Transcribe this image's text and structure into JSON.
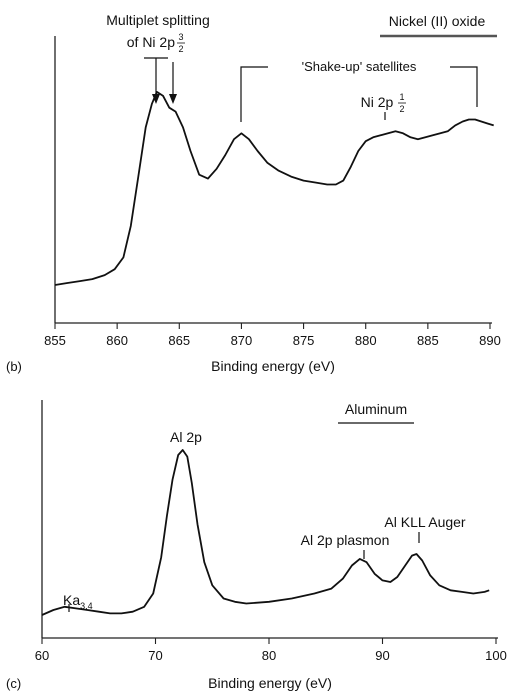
{
  "chart_data": [
    {
      "type": "line",
      "panel_label": "(b)",
      "title": "Nickel (II) oxide",
      "xlabel": "Binding energy (eV)",
      "ylabel": "",
      "xlim": [
        855,
        890
      ],
      "xticks": [
        855,
        860,
        865,
        870,
        875,
        880,
        885,
        890
      ],
      "series": [
        {
          "x": [
            855,
            856,
            857,
            858,
            859,
            859.8,
            860.5,
            861.1,
            861.7,
            862.3,
            862.8,
            863.2,
            863.7,
            864.2,
            864.7,
            865.3,
            865.9,
            866.6,
            867.3,
            868.0,
            868.7,
            869.4,
            870.0,
            870.6,
            871.3,
            872.1,
            873.0,
            874.0,
            875.0,
            876.0,
            876.9,
            877.6,
            878.2,
            878.8,
            879.4,
            880.0,
            880.6,
            881.2,
            881.8,
            882.4,
            883.0,
            883.6,
            884.2,
            884.8,
            885.4,
            886.0,
            886.6,
            887.2,
            887.8,
            888.3,
            888.8,
            889.3,
            889.8,
            890.3
          ],
          "y": [
            0.0,
            0.01,
            0.02,
            0.03,
            0.05,
            0.08,
            0.14,
            0.3,
            0.55,
            0.8,
            0.92,
            0.98,
            0.96,
            0.9,
            0.88,
            0.8,
            0.68,
            0.56,
            0.54,
            0.59,
            0.66,
            0.74,
            0.77,
            0.74,
            0.68,
            0.62,
            0.58,
            0.55,
            0.53,
            0.52,
            0.51,
            0.51,
            0.53,
            0.6,
            0.68,
            0.73,
            0.75,
            0.76,
            0.77,
            0.78,
            0.77,
            0.75,
            0.74,
            0.75,
            0.76,
            0.77,
            0.78,
            0.81,
            0.83,
            0.84,
            0.84,
            0.83,
            0.82,
            0.81
          ]
        }
      ],
      "annotations": {
        "multiplet": "Multiplet splitting",
        "multiplet_of": "of Ni 2p",
        "multiplet_num": "3",
        "multiplet_den": "2",
        "satellites": "'Shake-up' satellites",
        "ni2p": "Ni 2p",
        "ni2p_num": "1",
        "ni2p_den": "2"
      }
    },
    {
      "type": "line",
      "panel_label": "(c)",
      "title": "Aluminum",
      "xlabel": "Binding energy (eV)",
      "ylabel": "",
      "xlim": [
        60,
        100
      ],
      "xticks": [
        60,
        70,
        80,
        90,
        100
      ],
      "series": [
        {
          "x": [
            60,
            61,
            62,
            63,
            64,
            65,
            66,
            67,
            68,
            69,
            69.8,
            70.5,
            71.0,
            71.5,
            72.0,
            72.4,
            72.8,
            73.2,
            73.7,
            74.3,
            75.0,
            76.0,
            77.0,
            78.0,
            80.0,
            82.0,
            84.0,
            85.5,
            86.5,
            87.3,
            88.0,
            88.6,
            89.3,
            90.0,
            90.7,
            91.3,
            92.0,
            92.6,
            93.0,
            93.5,
            94.2,
            95.0,
            96.0,
            97.0,
            98.0,
            99.0,
            99.4
          ],
          "y": [
            0.0,
            0.03,
            0.05,
            0.04,
            0.03,
            0.02,
            0.01,
            0.01,
            0.02,
            0.05,
            0.13,
            0.35,
            0.6,
            0.82,
            0.97,
            1.0,
            0.96,
            0.8,
            0.55,
            0.32,
            0.18,
            0.1,
            0.08,
            0.07,
            0.08,
            0.1,
            0.13,
            0.16,
            0.22,
            0.3,
            0.34,
            0.32,
            0.25,
            0.21,
            0.2,
            0.23,
            0.3,
            0.36,
            0.37,
            0.33,
            0.24,
            0.18,
            0.15,
            0.14,
            0.13,
            0.14,
            0.15
          ]
        }
      ],
      "annotations": {
        "ka_base": "Ka",
        "ka_sub": "3,4",
        "al2p": "Al 2p",
        "plasmon": "Al 2p plasmon",
        "auger": "Al KLL Auger"
      }
    }
  ]
}
